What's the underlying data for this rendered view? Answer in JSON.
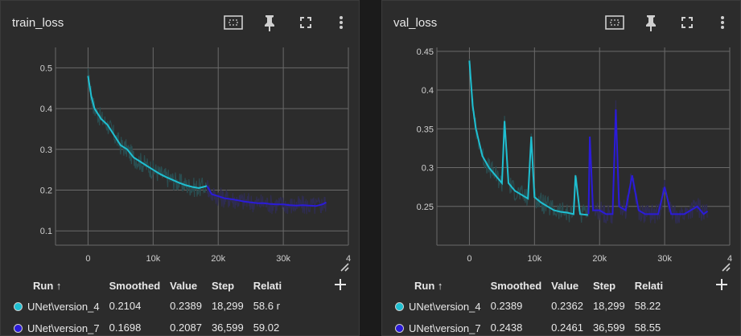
{
  "colors": {
    "version_4": "#1fbfd1",
    "version_4_raw": "#2a4d50",
    "version_7": "#2b1bd9",
    "version_7_raw": "#2f2c52",
    "grid": "#6a6a6a",
    "axis_text": "#cfcfcf"
  },
  "icons": [
    "fit-domain-icon",
    "pin-icon",
    "fullscreen-icon",
    "more-vert-icon",
    "resize-handle-icon",
    "add-column-icon"
  ],
  "panels": [
    {
      "title": "train_loss",
      "columns": [
        "Run ↑",
        "Smoothed",
        "Value",
        "Step",
        "Relati"
      ],
      "rows": [
        {
          "run": "UNet\\version_4",
          "smoothed": "0.2104",
          "value": "0.2389",
          "step": "18,299",
          "relative": "58.6 r"
        },
        {
          "run": "UNet\\version_7",
          "smoothed": "0.1698",
          "value": "0.2087",
          "step": "36,599",
          "relative": "59.02"
        }
      ],
      "x_tick_labels": [
        "0",
        "10k",
        "20k",
        "30k",
        "4"
      ],
      "y_tick_labels": [
        "0.1",
        "0.2",
        "0.3",
        "0.4",
        "0.5"
      ]
    },
    {
      "title": "val_loss",
      "columns": [
        "Run ↑",
        "Smoothed",
        "Value",
        "Step",
        "Relati"
      ],
      "rows": [
        {
          "run": "UNet\\version_4",
          "smoothed": "0.2389",
          "value": "0.2362",
          "step": "18,299",
          "relative": "58.22"
        },
        {
          "run": "UNet\\version_7",
          "smoothed": "0.2438",
          "value": "0.2461",
          "step": "36,599",
          "relative": "58.55"
        }
      ],
      "x_tick_labels": [
        "0",
        "10k",
        "20k",
        "30k",
        "4"
      ],
      "y_tick_labels": [
        "0.25",
        "0.3",
        "0.35",
        "0.4",
        "0.45"
      ]
    }
  ],
  "chart_data": [
    {
      "type": "line",
      "title": "train_loss",
      "xlim": [
        -5000,
        40000
      ],
      "ylim": [
        0.065,
        0.55
      ],
      "grid": true,
      "series": [
        {
          "name": "UNet\\version_4",
          "color": "#1fbfd1",
          "raw_color": "#2a4d50",
          "x": [
            0,
            500,
            1000,
            2000,
            3000,
            4000,
            5000,
            6000,
            7000,
            8000,
            9000,
            10000,
            11000,
            12000,
            13000,
            14000,
            15000,
            16000,
            17000,
            18299
          ],
          "y": [
            0.48,
            0.43,
            0.4,
            0.375,
            0.36,
            0.335,
            0.31,
            0.3,
            0.28,
            0.27,
            0.26,
            0.25,
            0.24,
            0.232,
            0.225,
            0.218,
            0.212,
            0.208,
            0.205,
            0.2104
          ]
        },
        {
          "name": "UNet\\version_7",
          "color": "#2b1bd9",
          "raw_color": "#2f2c52",
          "x": [
            18299,
            19000,
            20000,
            21000,
            22000,
            23000,
            24000,
            25000,
            26000,
            27000,
            28000,
            29000,
            30000,
            31000,
            32000,
            33000,
            34000,
            35000,
            36000,
            36599
          ],
          "y": [
            0.21,
            0.19,
            0.185,
            0.18,
            0.178,
            0.175,
            0.172,
            0.17,
            0.168,
            0.168,
            0.166,
            0.165,
            0.165,
            0.163,
            0.162,
            0.163,
            0.162,
            0.161,
            0.165,
            0.1698
          ]
        }
      ]
    },
    {
      "type": "line",
      "title": "val_loss",
      "xlim": [
        -5000,
        40000
      ],
      "ylim": [
        0.2,
        0.455
      ],
      "grid": true,
      "series": [
        {
          "name": "UNet\\version_4",
          "color": "#1fbfd1",
          "raw_color": "#2a4d50",
          "x": [
            0,
            500,
            1000,
            2000,
            3000,
            4000,
            5000,
            5400,
            6000,
            7000,
            8000,
            9000,
            9500,
            10000,
            11000,
            12000,
            13000,
            14000,
            15000,
            16000,
            16300,
            17000,
            18299
          ],
          "y": [
            0.438,
            0.38,
            0.35,
            0.315,
            0.3,
            0.29,
            0.28,
            0.36,
            0.28,
            0.27,
            0.265,
            0.26,
            0.34,
            0.262,
            0.255,
            0.25,
            0.245,
            0.243,
            0.242,
            0.24,
            0.29,
            0.24,
            0.2389
          ]
        },
        {
          "name": "UNet\\version_7",
          "color": "#2b1bd9",
          "raw_color": "#2f2c52",
          "x": [
            18299,
            18500,
            19000,
            20000,
            21000,
            22000,
            22500,
            23000,
            24000,
            25000,
            26000,
            27000,
            28000,
            29000,
            30000,
            31000,
            32000,
            33000,
            34000,
            35000,
            36000,
            36599
          ],
          "y": [
            0.24,
            0.34,
            0.245,
            0.245,
            0.24,
            0.24,
            0.375,
            0.25,
            0.245,
            0.29,
            0.245,
            0.24,
            0.24,
            0.24,
            0.275,
            0.24,
            0.24,
            0.24,
            0.245,
            0.25,
            0.24,
            0.2438
          ]
        }
      ]
    }
  ]
}
